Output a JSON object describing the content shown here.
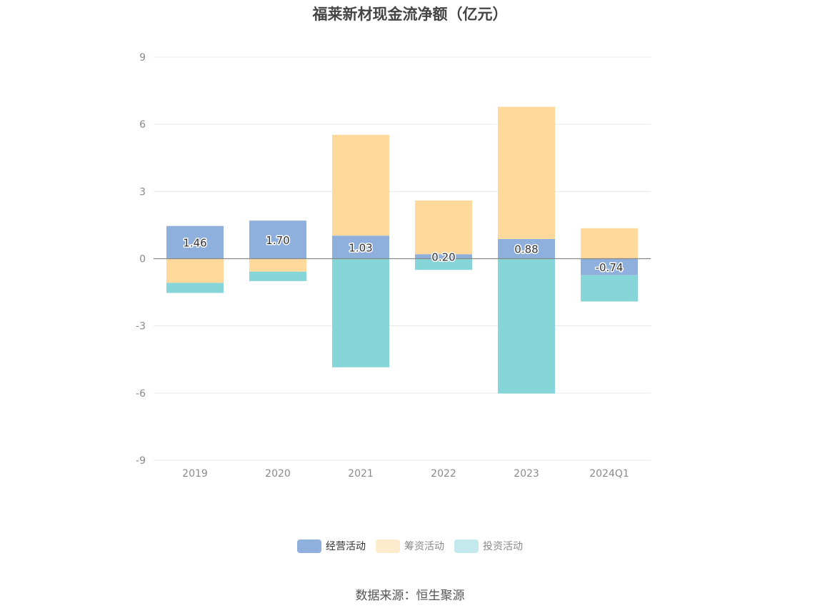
{
  "chart_data": {
    "type": "bar",
    "stacked": true,
    "title": "福莱新材现金流净额（亿元）",
    "categories": [
      "2019",
      "2020",
      "2021",
      "2022",
      "2023",
      "2024Q1"
    ],
    "series": [
      {
        "name": "经营活动",
        "color": "#8fb0dd",
        "values": [
          1.46,
          1.7,
          1.03,
          0.2,
          0.88,
          -0.74
        ],
        "labels": [
          "1.46",
          "1.70",
          "1.03",
          "0.20",
          "0.88",
          "-0.74"
        ]
      },
      {
        "name": "筹资活动",
        "color": "#fed99b",
        "values": [
          -1.08,
          -0.58,
          4.5,
          2.4,
          5.9,
          1.36
        ]
      },
      {
        "name": "投资活动",
        "color": "#86d5d9",
        "values": [
          -0.45,
          -0.42,
          -4.85,
          -0.5,
          -6.02,
          -1.17
        ]
      }
    ],
    "legend_colors": [
      "#8fb0dd",
      "#feebcd",
      "#c3e9ec"
    ],
    "ylim": [
      -9,
      9
    ],
    "yticks": [
      "9",
      "6",
      "3",
      "0",
      "-3",
      "-6",
      "-9"
    ],
    "grid": true,
    "legend_position": "bottom"
  },
  "source": "数据来源：恒生聚源"
}
